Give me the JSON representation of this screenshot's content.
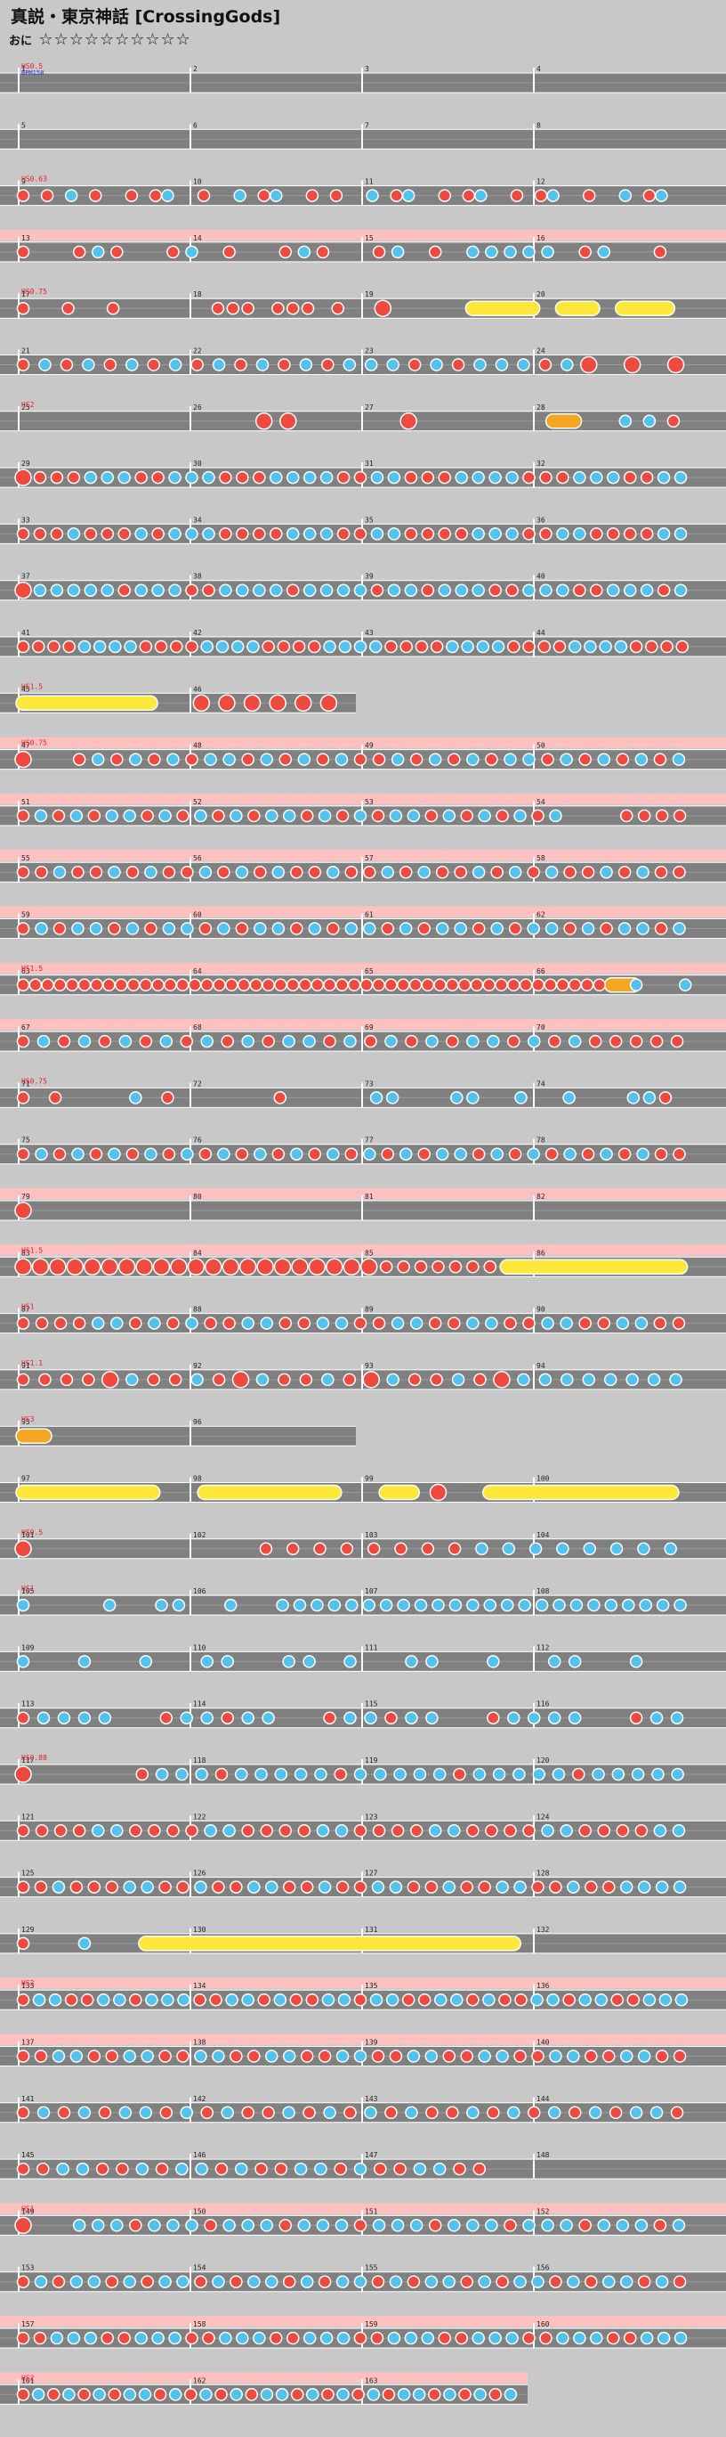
{
  "header": {
    "song_title": "真説・東京神話 [CrossingGods]",
    "difficulty_label": "おに",
    "stars": "☆☆☆☆☆☆☆☆☆☆"
  },
  "markers": {
    "first_bpm": "BPM158",
    "first_speed": "HS0.5"
  },
  "rows": [
    {
      "measures": [
        1,
        2,
        3,
        4
      ],
      "pink": 0,
      "notes": "......................................................................",
      "label": "HS0.5"
    },
    {
      "measures": [
        5,
        6,
        7,
        8
      ],
      "pink": 0,
      "notes": "......................................................................",
      "label": ""
    },
    {
      "measures": [
        9,
        10,
        11,
        12
      ],
      "pink": 0,
      "notes": "r.r.b.r..r.rb..r..b.rb..r.r..b.rb..r.rb..r.rb..r..b.rb..",
      "label": "HS0.63"
    },
    {
      "measures": [
        13,
        14,
        15,
        16
      ],
      "pink": 1,
      "notes": "r..rbr..rb.r..rbr..rb.r.bbbbb.rb..r.",
      "label": ""
    },
    {
      "measures": [
        17,
        18,
        19,
        20
      ],
      "pink": 0,
      "notes": "r..r..r......rrr.rrr.r..R.....YYYYY.YYY.YYYY.",
      "label": "HS0.75"
    },
    {
      "measures": [
        21,
        22,
        23,
        24
      ],
      "pink": 0,
      "notes": "rbrbrbrbrbrbrbrbbbrbrbbbrbR.R.R",
      "label": ""
    },
    {
      "measures": [
        25,
        26,
        27,
        28
      ],
      "pink": 0,
      "notes": "..........RR....R.....D..bbr",
      "label": "HS2"
    },
    {
      "measures": [
        29,
        30,
        31,
        32
      ],
      "pink": 0,
      "notes": "Rrrrbbbrrbbbrrrbbbbrrbbrrrbbbbrrrbbbrrbb",
      "label": ""
    },
    {
      "measures": [
        33,
        34,
        35,
        36
      ],
      "pink": 0,
      "notes": "rrrbrrrbrbbbrrrrbbbrrbbrrrrbbbrrbbrrrrbb",
      "label": ""
    },
    {
      "measures": [
        37,
        38,
        39,
        40
      ],
      "pink": 0,
      "notes": "Rbbbbbrbbbrrbbbbrbbbbrbbrbbbrrbbbrrbbbrb",
      "label": ""
    },
    {
      "measures": [
        41,
        42,
        43,
        44
      ],
      "pink": 0,
      "notes": "rrrrbbbbrrrrbbbbrrrrbbbbrrrrbbbbrrrrbbbbrrrr",
      "label": ""
    },
    {
      "measures": [
        45,
        46
      ],
      "pink": 0,
      "notes": "YYYYYY.RRRRRR",
      "label": "HS1.5"
    },
    {
      "measures": [
        47,
        48,
        49,
        50
      ],
      "pink": 1,
      "notes": "R..rbrbrbrbbrbrbrbrrbrbrbrbbrbrbrbrb",
      "label": "HS0.75"
    },
    {
      "measures": [
        51,
        52,
        53,
        54
      ],
      "pink": 1,
      "notes": "rbrbrbbrbrbrbrbbrbrbrbbrbrbrbrb...rrrr",
      "label": ""
    },
    {
      "measures": [
        55,
        56,
        57,
        58
      ],
      "pink": 1,
      "notes": "rrbrrbrbrrbrbrbrrbrrbrbrrbrbrbrrbrbrr",
      "label": ""
    },
    {
      "measures": [
        59,
        60,
        61,
        62
      ],
      "pink": 1,
      "notes": "rbrbbrbrbbrbrbbrbrbbrbrbbrbrbbrbrbbrb",
      "label": ""
    },
    {
      "measures": [
        63,
        64,
        65,
        66
      ],
      "pink": 1,
      "notes": "rrrrrrrrrrrrrrrrrrrrrrrrrrrrrrrrrrrrrrrrrrrrrrrrD.b...b",
      "label": "HS1.5"
    },
    {
      "measures": [
        67,
        68,
        69,
        70
      ],
      "pink": 1,
      "notes": "rbrbrbrbrbrbrbbrbrbrbrbbrbrbrrrrr",
      "label": ""
    },
    {
      "measures": [
        71,
        72,
        73,
        74
      ],
      "pink": 0,
      "notes": "r.r....b.r......r.....bb...bb..b..b...bbr.",
      "label": "HS0.75"
    },
    {
      "measures": [
        75,
        76,
        77,
        78
      ],
      "pink": 0,
      "notes": "rbrbrbrbrbrbrbrbrbrbrbrbbrbrbrbrbrbrr",
      "label": ""
    },
    {
      "measures": [
        79,
        80,
        81,
        82
      ],
      "pink": 1,
      "notes": "R......................",
      "label": ""
    },
    {
      "measures": [
        83,
        84,
        85,
        86
      ],
      "pink": 1,
      "notes": "RRRRRRRRRRRRRRRRRRRRRrrrrrrrYYYYYYYYYYY",
      "label": "HS1.5"
    },
    {
      "measures": [
        87,
        88,
        89,
        90
      ],
      "pink": 0,
      "notes": "rrrrbbrbrbrrbbrrbbrrbbrrbbrrbbrrbbrr",
      "label": "HS1"
    },
    {
      "measures": [
        91,
        92,
        93,
        94
      ],
      "pink": 0,
      "notes": "rrrrRbrrbrRbrrbrRbrrbrRbbbbbbbb",
      "label": "HS1.1"
    },
    {
      "measures": [
        95,
        96
      ],
      "pink": 0,
      "notes": "D...........",
      "label": "HS3"
    },
    {
      "measures": [
        97,
        98,
        99,
        100
      ],
      "pink": 0,
      "notes": "YYYYYY.YYYYYY.YYR.YYYYYYYY",
      "label": ""
    },
    {
      "measures": [
        101,
        102,
        103,
        104
      ],
      "pink": 0,
      "notes": "R........rrrrrrrrbbbbbbbb",
      "label": "HS0.5"
    },
    {
      "measures": [
        105,
        106,
        107,
        108
      ],
      "pink": 0,
      "notes": "b....b..bb..b..bbbbbbbbbbbbbbbbbbbbbbbb",
      "label": "HS1"
    },
    {
      "measures": [
        109,
        110,
        111,
        112
      ],
      "pink": 0,
      "notes": "b..b..b..bb..bb.b..bb..b..bb..b..",
      "label": ""
    },
    {
      "measures": [
        113,
        114,
        115,
        116
      ],
      "pink": 0,
      "notes": "rbbbb..rbbrbb..rbbrbb..rbbbb..rbb",
      "label": ""
    },
    {
      "measures": [
        117,
        118,
        119,
        120
      ],
      "pink": 0,
      "notes": "R.....rbbbrbbbbbrbbbbbrbbbbbrbbbbb",
      "label": "HS0.88"
    },
    {
      "measures": [
        121,
        122,
        123,
        124
      ],
      "pink": 0,
      "notes": "rrrrbbrrrrbbrrrrbbrrrrbbrrrrbbrrrrbb",
      "label": ""
    },
    {
      "measures": [
        125,
        126,
        127,
        128
      ],
      "pink": 0,
      "notes": "rrbrrrbbrrbrrbbrrbrrbbrrbrrbbrrbrrbbbb",
      "label": ""
    },
    {
      "measures": [
        129,
        130,
        131,
        132
      ],
      "pink": 0,
      "notes": "r..b..YYYYYYYYYYYYYYYYYYY........",
      "label": ""
    },
    {
      "measures": [
        133,
        134,
        135,
        136
      ],
      "pink": 1,
      "notes": "rbbrrbbrbbbrrbbrbrrbbrbbrrbbrbrrbbrbbrrbbb",
      "label": "HS2"
    },
    {
      "measures": [
        137,
        138,
        139,
        140
      ],
      "pink": 1,
      "notes": "rrbbrrbbrrbbrrbbrrbbrrbbrrbbrrbbrrbbrr",
      "label": ""
    },
    {
      "measures": [
        141,
        142,
        143,
        144
      ],
      "pink": 0,
      "notes": "rbrbrbbrbrbrrbrbrbrbrrbrbrbrbrbbr",
      "label": ""
    },
    {
      "measures": [
        145,
        146,
        147,
        148
      ],
      "pink": 0,
      "notes": "rrbbrrbrbbrbrrbbrbrrbbrr..........",
      "label": ""
    },
    {
      "measures": [
        149,
        150,
        151,
        152
      ],
      "pink": 1,
      "notes": "R..bbbrbbbrbbbrbbbrbbbrbbbrbbbrbbbrb",
      "label": "HS1"
    },
    {
      "measures": [
        153,
        154,
        155,
        156
      ],
      "pink": 0,
      "notes": "rbrbbrbrbbrbrbbrbrbbrbrbbrbrbbrbrbbrbr",
      "label": ""
    },
    {
      "measures": [
        157,
        158,
        159,
        160
      ],
      "pink": 1,
      "notes": "rrbbbrrbbbrrbbbrrbbbrrbbbrrbbbrrbbbrrbbb",
      "label": ""
    },
    {
      "measures": [
        161,
        162,
        163
      ],
      "pink": 1,
      "notes": "rbrbrbrbbrbrbrbrbbrbrbrbrbbrbrbrb",
      "label": "HS2"
    }
  ],
  "colors": {
    "background": "#c8c8c8",
    "lane": "#808080",
    "lane_border": "#ffffff",
    "pink_band": "#ffc0c0",
    "don": "#f04a3e",
    "ka": "#52c3f0",
    "drumroll": "#ffe83a",
    "balloon": "#f5a623",
    "label_red": "#e0202a",
    "label_blue": "#2a2ae0"
  },
  "icons": {
    "don": "red-don-note-icon",
    "ka": "blue-ka-note-icon",
    "drumroll": "yellow-drumroll-icon",
    "balloon": "balloon-icon"
  }
}
